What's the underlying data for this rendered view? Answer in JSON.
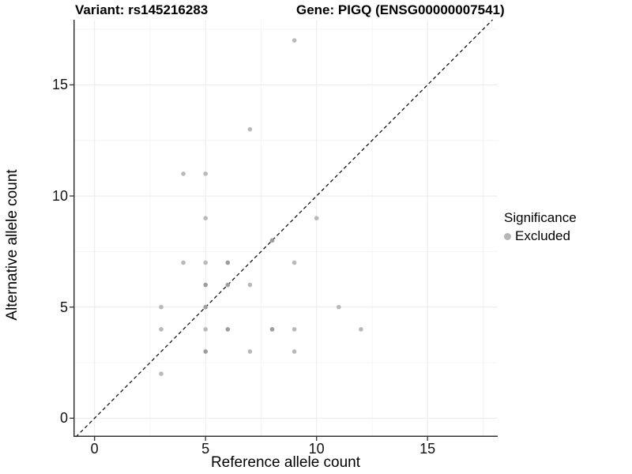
{
  "chart_data": {
    "type": "scatter",
    "title_left": "Variant: rs145216283",
    "title_right": "Gene: PIGQ (ENSG00000007541)",
    "xlabel": "Reference allele count",
    "ylabel": "Alternative allele count",
    "x_ticks": [
      0,
      5,
      10,
      15
    ],
    "y_ticks": [
      0,
      5,
      10,
      15
    ],
    "x_minor_ticks": [
      2.5,
      7.5,
      12.5,
      17.5
    ],
    "y_minor_ticks": [
      2.5,
      7.5,
      12.5,
      17.5
    ],
    "xlim": [
      -0.95,
      18.16
    ],
    "ylim": [
      -0.84,
      17.93
    ],
    "grid": true,
    "legend_title": "Significance",
    "legend_position": "right",
    "identity_line": {
      "style": "dashed",
      "slope": 1,
      "intercept": 0,
      "color": "#000000"
    },
    "series": [
      {
        "name": "Excluded",
        "color_single": "#b9b9b9",
        "color_overlap": "#9d9d9d",
        "legend_key_color": "#b5b5b5",
        "points": [
          {
            "x": 9,
            "y": 17,
            "n": 1
          },
          {
            "x": 7,
            "y": 13,
            "n": 1
          },
          {
            "x": 4,
            "y": 11,
            "n": 1
          },
          {
            "x": 5,
            "y": 11,
            "n": 1
          },
          {
            "x": 5,
            "y": 9,
            "n": 1
          },
          {
            "x": 10,
            "y": 9,
            "n": 1
          },
          {
            "x": 8,
            "y": 8,
            "n": 2
          },
          {
            "x": 4,
            "y": 7,
            "n": 1
          },
          {
            "x": 5,
            "y": 7,
            "n": 1
          },
          {
            "x": 6,
            "y": 7,
            "n": 2
          },
          {
            "x": 9,
            "y": 7,
            "n": 1
          },
          {
            "x": 5,
            "y": 6,
            "n": 2
          },
          {
            "x": 6,
            "y": 6,
            "n": 2
          },
          {
            "x": 7,
            "y": 6,
            "n": 1
          },
          {
            "x": 3,
            "y": 5,
            "n": 1
          },
          {
            "x": 5,
            "y": 5,
            "n": 2
          },
          {
            "x": 11,
            "y": 5,
            "n": 1
          },
          {
            "x": 3,
            "y": 4,
            "n": 1
          },
          {
            "x": 5,
            "y": 4,
            "n": 1
          },
          {
            "x": 6,
            "y": 4,
            "n": 2
          },
          {
            "x": 8,
            "y": 4,
            "n": 2
          },
          {
            "x": 9,
            "y": 4,
            "n": 1
          },
          {
            "x": 12,
            "y": 4,
            "n": 1
          },
          {
            "x": 5,
            "y": 3,
            "n": 2
          },
          {
            "x": 7,
            "y": 3,
            "n": 1
          },
          {
            "x": 9,
            "y": 3,
            "n": 1
          },
          {
            "x": 3,
            "y": 2,
            "n": 1
          }
        ]
      }
    ],
    "colors": {
      "grid_major": "#eaeaea",
      "grid_minor": "#f4f4f4",
      "axis_line": "#333333",
      "tick_mark": "#333333"
    }
  }
}
